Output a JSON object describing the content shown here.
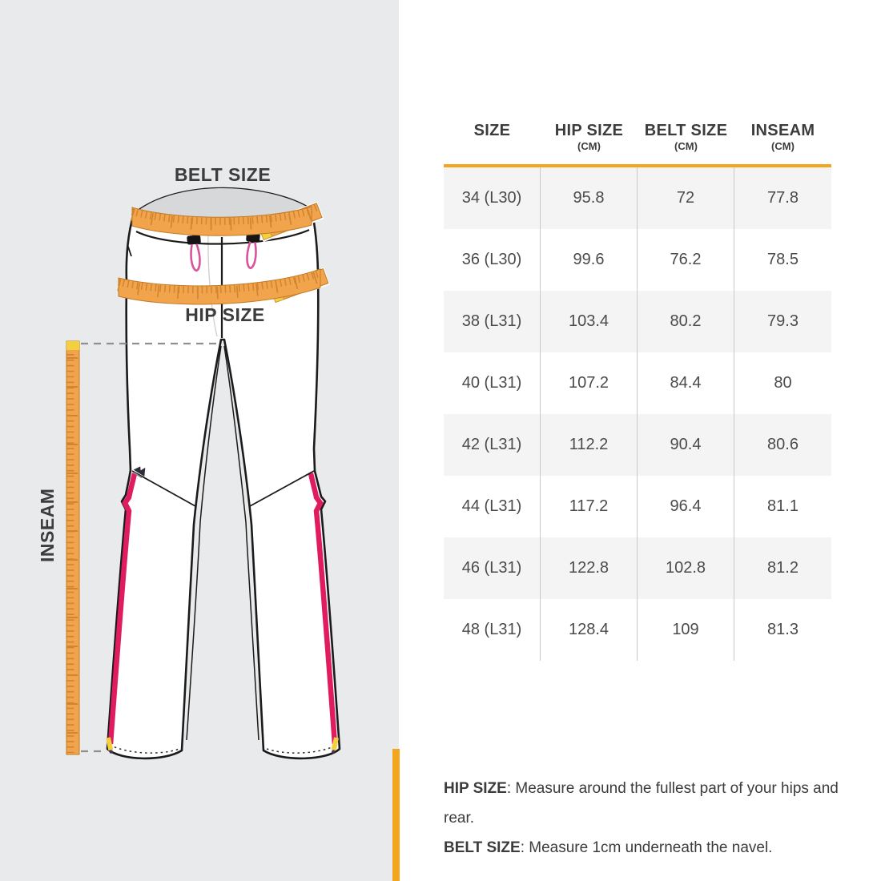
{
  "diagram": {
    "belt_label": "BELT SIZE",
    "hip_label": "HIP SIZE",
    "inseam_label": "INSEAM"
  },
  "table": {
    "headers": [
      {
        "label": "SIZE",
        "unit": ""
      },
      {
        "label": "HIP SIZE",
        "unit": "(CM)"
      },
      {
        "label": "BELT SIZE",
        "unit": "(CM)"
      },
      {
        "label": "INSEAM",
        "unit": "(CM)"
      }
    ],
    "rows": [
      [
        "34 (L30)",
        "95.8",
        "72",
        "77.8"
      ],
      [
        "36 (L30)",
        "99.6",
        "76.2",
        "78.5"
      ],
      [
        "38 (L31)",
        "103.4",
        "80.2",
        "79.3"
      ],
      [
        "40 (L31)",
        "107.2",
        "84.4",
        "80"
      ],
      [
        "42 (L31)",
        "112.2",
        "90.4",
        "80.6"
      ],
      [
        "44 (L31)",
        "117.2",
        "96.4",
        "81.1"
      ],
      [
        "46 (L31)",
        "122.8",
        "102.8",
        "81.2"
      ],
      [
        "48 (L31)",
        "128.4",
        "109",
        "81.3"
      ]
    ]
  },
  "chart_data": {
    "type": "table",
    "columns": [
      "SIZE",
      "HIP SIZE (CM)",
      "BELT SIZE (CM)",
      "INSEAM (CM)"
    ],
    "rows": [
      [
        "34 (L30)",
        95.8,
        72,
        77.8
      ],
      [
        "36 (L30)",
        99.6,
        76.2,
        78.5
      ],
      [
        "38 (L31)",
        103.4,
        80.2,
        79.3
      ],
      [
        "40 (L31)",
        107.2,
        84.4,
        80
      ],
      [
        "42 (L31)",
        112.2,
        90.4,
        80.6
      ],
      [
        "44 (L31)",
        117.2,
        96.4,
        81.1
      ],
      [
        "46 (L31)",
        122.8,
        102.8,
        81.2
      ],
      [
        "48 (L31)",
        128.4,
        109,
        81.3
      ]
    ]
  },
  "notes": [
    {
      "term": "HIP SIZE",
      "text": ": Measure around the fullest part of your hips and rear."
    },
    {
      "term": "BELT SIZE",
      "text": ": Measure 1cm underneath the navel."
    }
  ],
  "colors": {
    "accent_orange": "#F2A51D",
    "tape_orange": "#F2A44D",
    "tape_tick": "#D28531",
    "tape_border": "#C07B24",
    "tip_yellow": "#F4CF3F",
    "stripe_red": "#DE1C5F",
    "drawcord_pink": "#D9549B",
    "outline_black": "#1B1B1B",
    "panel_gray": "#E9EAEB",
    "waist_inside_gray": "#D7D8D9",
    "row_gray": "#F4F4F4",
    "text_dark": "#3C3C3C"
  }
}
